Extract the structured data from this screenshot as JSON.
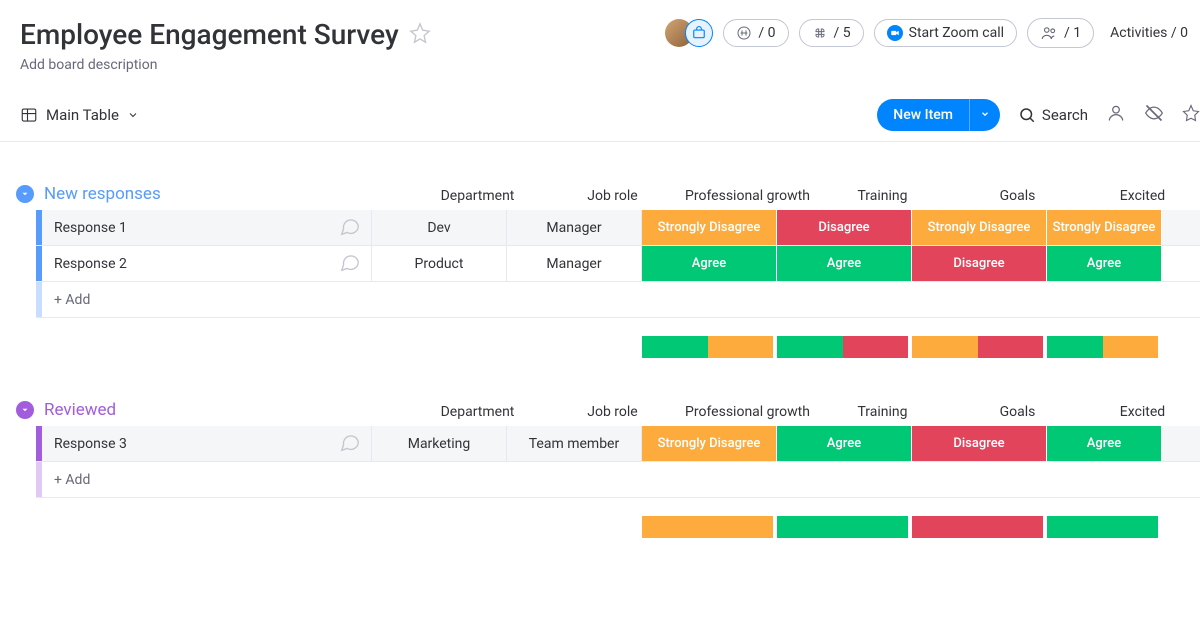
{
  "colors": {
    "blue": "#579bfc",
    "purple": "#a25ddc",
    "orange": "#fdab3d",
    "green": "#00c875",
    "red": "#e2445c",
    "accent": "#0085ff"
  },
  "header": {
    "title": "Employee Engagement Survey",
    "description": "Add board description",
    "stats": {
      "automations": "/ 0",
      "integrations": "/ 5",
      "zoom_label": "Start Zoom call",
      "members": "/ 1",
      "activities_label": "Activities / 0"
    }
  },
  "tabs": {
    "main": "Main Table"
  },
  "toolbar": {
    "new_item": "New Item",
    "search": "Search"
  },
  "columns": [
    "Department",
    "Job role",
    "Professional growth",
    "Training",
    "Goals",
    "Excited"
  ],
  "groups": [
    {
      "name": "New responses",
      "color": "#579bfc",
      "rows": [
        {
          "name": "Response 1",
          "department": "Dev",
          "job_role": "Manager",
          "cells": [
            {
              "label": "Strongly Disagree",
              "color": "#fdab3d"
            },
            {
              "label": "Disagree",
              "color": "#e2445c"
            },
            {
              "label": "Strongly Disagree",
              "color": "#fdab3d"
            },
            {
              "label": "Strongly Disagree",
              "color": "#fdab3d"
            }
          ]
        },
        {
          "name": "Response 2",
          "department": "Product",
          "job_role": "Manager",
          "cells": [
            {
              "label": "Agree",
              "color": "#00c875"
            },
            {
              "label": "Agree",
              "color": "#00c875"
            },
            {
              "label": "Disagree",
              "color": "#e2445c"
            },
            {
              "label": "Agree",
              "color": "#00c875"
            }
          ]
        }
      ],
      "add_label": "+ Add",
      "summary": [
        [
          {
            "color": "#00c875",
            "pct": 50
          },
          {
            "color": "#fdab3d",
            "pct": 50
          }
        ],
        [
          {
            "color": "#00c875",
            "pct": 50
          },
          {
            "color": "#e2445c",
            "pct": 50
          }
        ],
        [
          {
            "color": "#fdab3d",
            "pct": 50
          },
          {
            "color": "#e2445c",
            "pct": 50
          }
        ],
        [
          {
            "color": "#00c875",
            "pct": 50
          },
          {
            "color": "#fdab3d",
            "pct": 50
          }
        ]
      ]
    },
    {
      "name": "Reviewed",
      "color": "#a25ddc",
      "rows": [
        {
          "name": "Response 3",
          "department": "Marketing",
          "job_role": "Team member",
          "cells": [
            {
              "label": "Strongly Disagree",
              "color": "#fdab3d"
            },
            {
              "label": "Agree",
              "color": "#00c875"
            },
            {
              "label": "Disagree",
              "color": "#e2445c"
            },
            {
              "label": "Agree",
              "color": "#00c875"
            }
          ]
        }
      ],
      "add_label": "+ Add",
      "summary": [
        [
          {
            "color": "#fdab3d",
            "pct": 100
          }
        ],
        [
          {
            "color": "#00c875",
            "pct": 100
          }
        ],
        [
          {
            "color": "#e2445c",
            "pct": 100
          }
        ],
        [
          {
            "color": "#00c875",
            "pct": 100
          }
        ]
      ]
    }
  ]
}
